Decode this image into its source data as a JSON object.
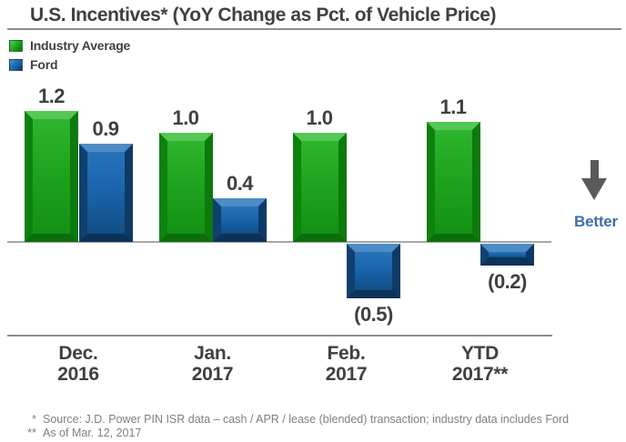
{
  "title": "U.S. Incentives* (YoY Change as Pct. of Vehicle Price)",
  "legend": {
    "items": [
      {
        "label": "Industry Average",
        "color": "#1EA41E"
      },
      {
        "label": "Ford",
        "color": "#1A65AC"
      }
    ]
  },
  "chart_data": {
    "type": "bar",
    "title": "U.S. Incentives* (YoY Change as Pct. of Vehicle Price)",
    "categories": [
      "Dec.\n2016",
      "Jan.\n2017",
      "Feb.\n2017",
      "YTD\n2017**"
    ],
    "series": [
      {
        "name": "Industry Average",
        "color": "#1EA41E",
        "values": [
          1.2,
          1.0,
          1.0,
          1.1
        ],
        "data_labels": [
          "1.2",
          "1.0",
          "1.0",
          "1.1"
        ]
      },
      {
        "name": "Ford",
        "color": "#1A65AC",
        "values": [
          0.9,
          0.4,
          -0.5,
          -0.2
        ],
        "data_labels": [
          "0.9",
          "0.4",
          "(0.5)",
          "(0.2)"
        ]
      }
    ],
    "baseline": 0,
    "ylim": [
      -0.7,
      1.5
    ],
    "grid": false,
    "legend_position": "top-left",
    "value_label_format": "negatives in parentheses",
    "annotation": {
      "text": "Better",
      "arrow_direction": "down"
    }
  },
  "annotations": {
    "better": "Better"
  },
  "footnotes": [
    {
      "marker": "*",
      "text": "Source:  J.D. Power PIN ISR data – cash / APR / lease (blended) transaction; industry data includes Ford"
    },
    {
      "marker": "**",
      "text": "As of Mar. 12, 2017"
    }
  ]
}
